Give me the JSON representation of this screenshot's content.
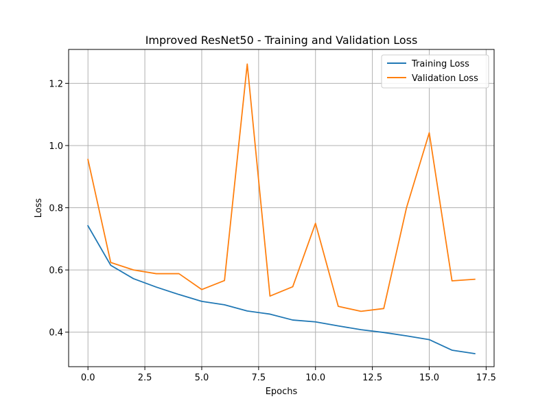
{
  "chart_data": {
    "type": "line",
    "title": "Improved ResNet50 - Training and Validation Loss",
    "xlabel": "Epochs",
    "ylabel": "Loss",
    "xlim": [
      -0.85,
      17.85
    ],
    "ylim": [
      0.289,
      1.309
    ],
    "xticks": [
      0.0,
      2.5,
      5.0,
      7.5,
      10.0,
      12.5,
      15.0,
      17.5
    ],
    "xtick_labels": [
      "0.0",
      "2.5",
      "5.0",
      "7.5",
      "10.0",
      "12.5",
      "15.0",
      "17.5"
    ],
    "yticks": [
      0.4,
      0.6,
      0.8,
      1.0,
      1.2
    ],
    "ytick_labels": [
      "0.4",
      "0.6",
      "0.8",
      "1.0",
      "1.2"
    ],
    "grid": true,
    "legend_position": "top-right",
    "x": [
      0,
      1,
      2,
      3,
      4,
      5,
      6,
      7,
      8,
      9,
      10,
      11,
      12,
      13,
      14,
      15,
      16,
      17
    ],
    "series": [
      {
        "name": "Training Loss",
        "color": "#1f77b4",
        "values": [
          0.742,
          0.615,
          0.572,
          0.545,
          0.521,
          0.499,
          0.488,
          0.468,
          0.458,
          0.439,
          0.433,
          0.42,
          0.408,
          0.399,
          0.388,
          0.376,
          0.342,
          0.331
        ]
      },
      {
        "name": "Validation Loss",
        "color": "#ff7f0e",
        "values": [
          0.955,
          0.624,
          0.6,
          0.588,
          0.588,
          0.537,
          0.566,
          1.262,
          0.516,
          0.546,
          0.75,
          0.483,
          0.467,
          0.476,
          0.8,
          1.041,
          0.565,
          0.57
        ]
      }
    ]
  }
}
